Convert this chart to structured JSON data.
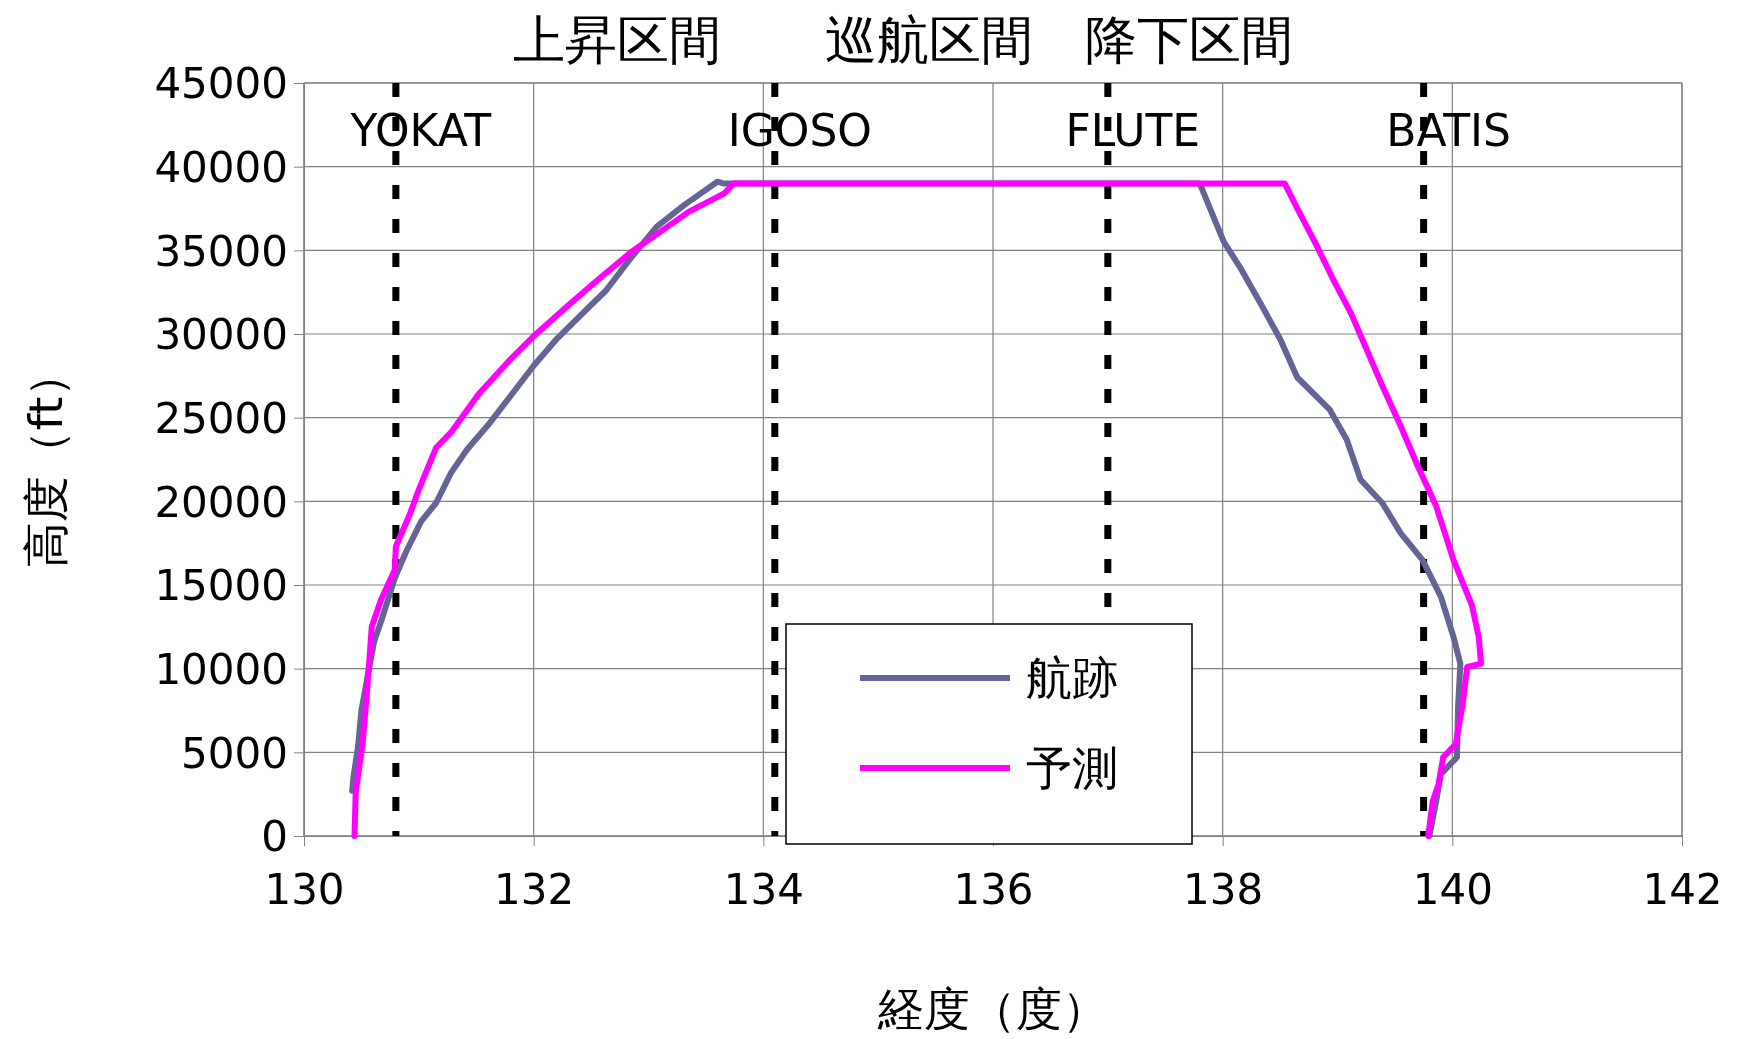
{
  "chart_data": {
    "type": "line",
    "title": "上昇区間　　巡航区間　降下区間",
    "xlabel": "経度（度）",
    "ylabel": "高度（ft）",
    "xlim": [
      130,
      142
    ],
    "xticks": [
      130,
      132,
      134,
      136,
      138,
      140,
      142
    ],
    "ylim": [
      0,
      45000
    ],
    "yticks": [
      0,
      5000,
      10000,
      15000,
      20000,
      25000,
      30000,
      35000,
      40000,
      45000
    ],
    "grid": true,
    "legend": "bottom",
    "line_style": "solid",
    "marker": "none",
    "series": [
      {
        "name": "航跡",
        "color": "#646496",
        "x": [
          130.42,
          130.43,
          130.47,
          130.5,
          130.55,
          130.61,
          130.67,
          130.73,
          130.79,
          130.89,
          131.02,
          131.15,
          131.28,
          131.42,
          131.62,
          131.81,
          132.0,
          132.2,
          132.39,
          132.63,
          132.83,
          133.07,
          133.31,
          133.6,
          133.65,
          137.8,
          138.01,
          138.15,
          138.34,
          138.5,
          138.65,
          138.93,
          139.08,
          139.2,
          139.39,
          139.55,
          139.74,
          139.9,
          140.01,
          140.07,
          140.05,
          140.04,
          139.9,
          139.86,
          139.8
        ],
        "values": [
          2700,
          3500,
          5300,
          7500,
          9400,
          11600,
          12800,
          14100,
          15400,
          17000,
          18800,
          19900,
          21700,
          23100,
          24700,
          26400,
          28100,
          29700,
          31000,
          32600,
          34400,
          36400,
          37700,
          39100,
          39000,
          39000,
          35500,
          34000,
          31700,
          29700,
          27400,
          25500,
          23700,
          21300,
          19900,
          18100,
          16500,
          14300,
          11900,
          10300,
          7700,
          4700,
          3700,
          2100,
          0
        ]
      },
      {
        "name": "予測",
        "color": "#ff00ff",
        "x": [
          130.44,
          130.45,
          130.51,
          130.55,
          130.59,
          130.67,
          130.79,
          130.8,
          130.92,
          131.0,
          131.15,
          131.29,
          131.52,
          131.8,
          131.99,
          132.3,
          132.57,
          132.85,
          133.08,
          133.35,
          133.66,
          133.74,
          138.54,
          138.65,
          138.81,
          138.96,
          139.12,
          139.24,
          139.39,
          139.55,
          139.7,
          139.86,
          140.01,
          140.17,
          140.23,
          140.25,
          140.13,
          140.09,
          140.03,
          139.92,
          139.88,
          139.83,
          139.79
        ],
        "values": [
          0,
          2600,
          5500,
          8700,
          12500,
          14100,
          15900,
          17300,
          19200,
          20700,
          23200,
          24200,
          26400,
          28500,
          29800,
          31700,
          33300,
          34900,
          36000,
          37300,
          38400,
          39000,
          39000,
          37500,
          35400,
          33300,
          31200,
          29300,
          26900,
          24500,
          22100,
          19700,
          16500,
          13800,
          11900,
          10300,
          10100,
          7900,
          5500,
          4700,
          3100,
          2100,
          0
        ]
      }
    ],
    "ref_lines": [
      {
        "axis": "x",
        "value": 130.8,
        "label": "YOKAT",
        "color": "#000000",
        "line_style": "dashed"
      },
      {
        "axis": "x",
        "value": 134.1,
        "label": "IGOSO",
        "color": "#000000",
        "line_style": "dashed"
      },
      {
        "axis": "x",
        "value": 137.0,
        "label": "FLUTE",
        "color": "#000000",
        "line_style": "dashed"
      },
      {
        "axis": "x",
        "value": 139.75,
        "label": "BATIS",
        "color": "#000000",
        "line_style": "dashed"
      }
    ]
  }
}
